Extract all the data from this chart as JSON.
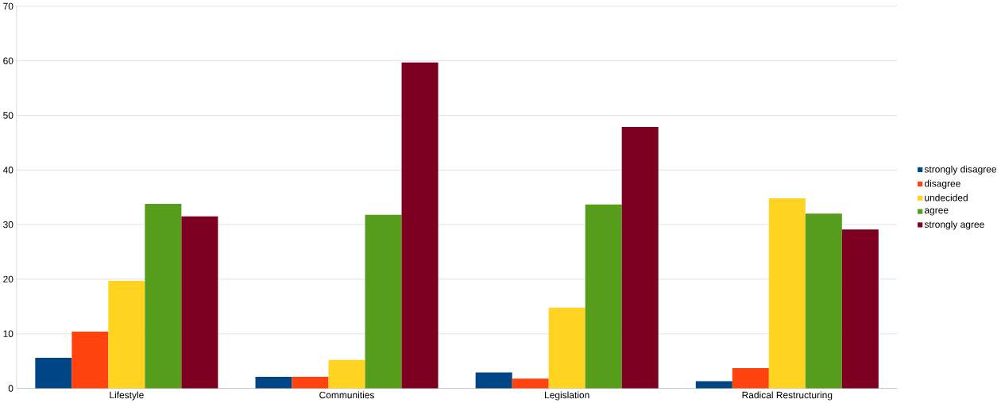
{
  "chart_data": {
    "type": "bar",
    "categories": [
      "Lifestyle",
      "Communities",
      "Legislation",
      "Radical Restructuring"
    ],
    "series": [
      {
        "name": "strongly disagree",
        "color": "#004586",
        "values": [
          5.6,
          2.1,
          2.9,
          1.3
        ]
      },
      {
        "name": "disagree",
        "color": "#ff420e",
        "values": [
          10.4,
          2.1,
          1.8,
          3.7
        ]
      },
      {
        "name": "undecided",
        "color": "#ffd320",
        "values": [
          19.7,
          5.2,
          14.8,
          34.8
        ]
      },
      {
        "name": "agree",
        "color": "#579d1c",
        "values": [
          33.8,
          31.8,
          33.7,
          32.0
        ]
      },
      {
        "name": "strongly agree",
        "color": "#7e0021",
        "values": [
          31.5,
          59.7,
          47.9,
          29.1
        ]
      }
    ],
    "ylim": [
      0,
      70
    ],
    "yticks": [
      0,
      10,
      20,
      30,
      40,
      50,
      60,
      70
    ],
    "grid": "y",
    "legend": "right"
  }
}
